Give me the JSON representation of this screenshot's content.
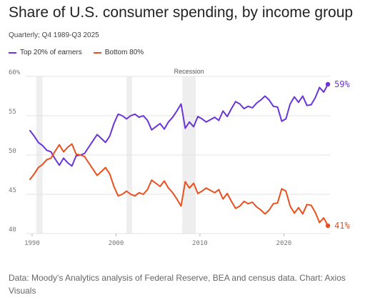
{
  "header": {
    "title": "Share of U.S. consumer spending, by income group",
    "subtitle": "Quarterly; Q4 1989-Q3 2025"
  },
  "footer": {
    "source": "Data: Moody's Analytics analysis of Federal Reserve, BEA and census data. Chart: Axios Visuals"
  },
  "colors": {
    "top20": "#6a34d9",
    "bottom80": "#e8501f",
    "recession": "#eeeeee",
    "grid": "#e3e3e3"
  },
  "chart_data": {
    "type": "line",
    "title": "Share of U.S. consumer spending, by income group",
    "subtitle": "Quarterly; Q4 1989-Q3 2025",
    "xlabel": "",
    "ylabel": "",
    "x_range": [
      1989.75,
      2025.5
    ],
    "ylim": [
      40,
      60
    ],
    "y_ticks": [
      {
        "value": 40,
        "label": "40"
      },
      {
        "value": 45,
        "label": "45"
      },
      {
        "value": 50,
        "label": "50"
      },
      {
        "value": 55,
        "label": "55"
      },
      {
        "value": 60,
        "label": "60%"
      }
    ],
    "x_ticks": [
      {
        "value": 1990,
        "label": "1990"
      },
      {
        "value": 2000,
        "label": "2000"
      },
      {
        "value": 2010,
        "label": "2010"
      },
      {
        "value": 2020,
        "label": "2020"
      }
    ],
    "grid": true,
    "legend": "top-left",
    "annotation": {
      "text": "Recession",
      "x": 2008.7
    },
    "recessions": [
      [
        1990.5,
        1991.25
      ],
      [
        2001.25,
        2001.9
      ],
      [
        2007.9,
        2009.5
      ]
    ],
    "series": [
      {
        "name": "Top 20% of earners",
        "key": "top20",
        "end_label": "59%",
        "points": [
          [
            1989.75,
            53.1
          ],
          [
            1990.25,
            52.4
          ],
          [
            1990.75,
            51.6
          ],
          [
            1991.25,
            51.2
          ],
          [
            1991.75,
            50.6
          ],
          [
            1992.25,
            50.4
          ],
          [
            1992.75,
            49.5
          ],
          [
            1993.25,
            48.7
          ],
          [
            1993.75,
            49.6
          ],
          [
            1994.25,
            49.0
          ],
          [
            1994.75,
            48.6
          ],
          [
            1995.25,
            49.9
          ],
          [
            1995.75,
            50.0
          ],
          [
            1996.25,
            50.2
          ],
          [
            1996.75,
            51.0
          ],
          [
            1997.25,
            51.8
          ],
          [
            1997.75,
            52.6
          ],
          [
            1998.25,
            52.1
          ],
          [
            1998.75,
            51.6
          ],
          [
            1999.25,
            52.4
          ],
          [
            1999.75,
            54.0
          ],
          [
            2000.25,
            55.2
          ],
          [
            2000.75,
            55.0
          ],
          [
            2001.25,
            54.6
          ],
          [
            2001.75,
            55.0
          ],
          [
            2002.25,
            55.2
          ],
          [
            2002.75,
            54.8
          ],
          [
            2003.25,
            55.0
          ],
          [
            2003.75,
            54.4
          ],
          [
            2004.25,
            53.2
          ],
          [
            2004.75,
            53.6
          ],
          [
            2005.25,
            54.0
          ],
          [
            2005.75,
            53.3
          ],
          [
            2006.25,
            54.2
          ],
          [
            2006.75,
            54.8
          ],
          [
            2007.25,
            55.6
          ],
          [
            2007.75,
            56.5
          ],
          [
            2008.25,
            53.4
          ],
          [
            2008.75,
            54.2
          ],
          [
            2009.25,
            53.6
          ],
          [
            2009.75,
            54.9
          ],
          [
            2010.25,
            54.6
          ],
          [
            2010.75,
            54.2
          ],
          [
            2011.25,
            54.5
          ],
          [
            2011.75,
            54.8
          ],
          [
            2012.25,
            54.4
          ],
          [
            2012.75,
            55.6
          ],
          [
            2013.25,
            54.9
          ],
          [
            2013.75,
            55.9
          ],
          [
            2014.25,
            56.8
          ],
          [
            2014.75,
            56.5
          ],
          [
            2015.25,
            55.9
          ],
          [
            2015.75,
            56.2
          ],
          [
            2016.25,
            56.0
          ],
          [
            2016.75,
            56.6
          ],
          [
            2017.25,
            57.0
          ],
          [
            2017.75,
            57.5
          ],
          [
            2018.25,
            57.0
          ],
          [
            2018.75,
            56.2
          ],
          [
            2019.25,
            56.1
          ],
          [
            2019.75,
            54.3
          ],
          [
            2020.25,
            54.6
          ],
          [
            2020.75,
            56.5
          ],
          [
            2021.25,
            57.4
          ],
          [
            2021.75,
            56.7
          ],
          [
            2022.25,
            57.5
          ],
          [
            2022.75,
            56.3
          ],
          [
            2023.25,
            56.4
          ],
          [
            2023.75,
            57.3
          ],
          [
            2024.25,
            58.6
          ],
          [
            2024.75,
            58.0
          ],
          [
            2025.25,
            59.0
          ]
        ]
      },
      {
        "name": "Bottom 80%",
        "key": "bottom80",
        "end_label": "41%",
        "points": [
          [
            1989.75,
            46.9
          ],
          [
            1990.25,
            47.6
          ],
          [
            1990.75,
            48.4
          ],
          [
            1991.25,
            48.8
          ],
          [
            1991.75,
            49.4
          ],
          [
            1992.25,
            49.6
          ],
          [
            1992.75,
            50.5
          ],
          [
            1993.25,
            51.3
          ],
          [
            1993.75,
            50.4
          ],
          [
            1994.25,
            51.0
          ],
          [
            1994.75,
            51.4
          ],
          [
            1995.25,
            50.1
          ],
          [
            1995.75,
            50.0
          ],
          [
            1996.25,
            49.8
          ],
          [
            1996.75,
            49.0
          ],
          [
            1997.25,
            48.2
          ],
          [
            1997.75,
            47.4
          ],
          [
            1998.25,
            47.9
          ],
          [
            1998.75,
            48.4
          ],
          [
            1999.25,
            47.6
          ],
          [
            1999.75,
            46.0
          ],
          [
            2000.25,
            44.8
          ],
          [
            2000.75,
            45.0
          ],
          [
            2001.25,
            45.4
          ],
          [
            2001.75,
            45.0
          ],
          [
            2002.25,
            44.8
          ],
          [
            2002.75,
            45.2
          ],
          [
            2003.25,
            45.0
          ],
          [
            2003.75,
            45.6
          ],
          [
            2004.25,
            46.8
          ],
          [
            2004.75,
            46.4
          ],
          [
            2005.25,
            46.0
          ],
          [
            2005.75,
            46.7
          ],
          [
            2006.25,
            45.8
          ],
          [
            2006.75,
            45.2
          ],
          [
            2007.25,
            44.4
          ],
          [
            2007.75,
            43.5
          ],
          [
            2008.25,
            46.6
          ],
          [
            2008.75,
            45.8
          ],
          [
            2009.25,
            46.4
          ],
          [
            2009.75,
            45.1
          ],
          [
            2010.25,
            45.4
          ],
          [
            2010.75,
            45.8
          ],
          [
            2011.25,
            45.5
          ],
          [
            2011.75,
            45.2
          ],
          [
            2012.25,
            45.6
          ],
          [
            2012.75,
            44.4
          ],
          [
            2013.25,
            45.1
          ],
          [
            2013.75,
            44.1
          ],
          [
            2014.25,
            43.2
          ],
          [
            2014.75,
            43.5
          ],
          [
            2015.25,
            44.1
          ],
          [
            2015.75,
            43.8
          ],
          [
            2016.25,
            44.0
          ],
          [
            2016.75,
            43.4
          ],
          [
            2017.25,
            43.0
          ],
          [
            2017.75,
            42.5
          ],
          [
            2018.25,
            43.0
          ],
          [
            2018.75,
            43.8
          ],
          [
            2019.25,
            43.9
          ],
          [
            2019.75,
            45.7
          ],
          [
            2020.25,
            45.4
          ],
          [
            2020.75,
            43.5
          ],
          [
            2021.25,
            42.6
          ],
          [
            2021.75,
            43.3
          ],
          [
            2022.25,
            42.5
          ],
          [
            2022.75,
            43.7
          ],
          [
            2023.25,
            43.6
          ],
          [
            2023.75,
            42.7
          ],
          [
            2024.25,
            41.4
          ],
          [
            2024.75,
            42.0
          ],
          [
            2025.25,
            41.0
          ]
        ]
      }
    ]
  }
}
